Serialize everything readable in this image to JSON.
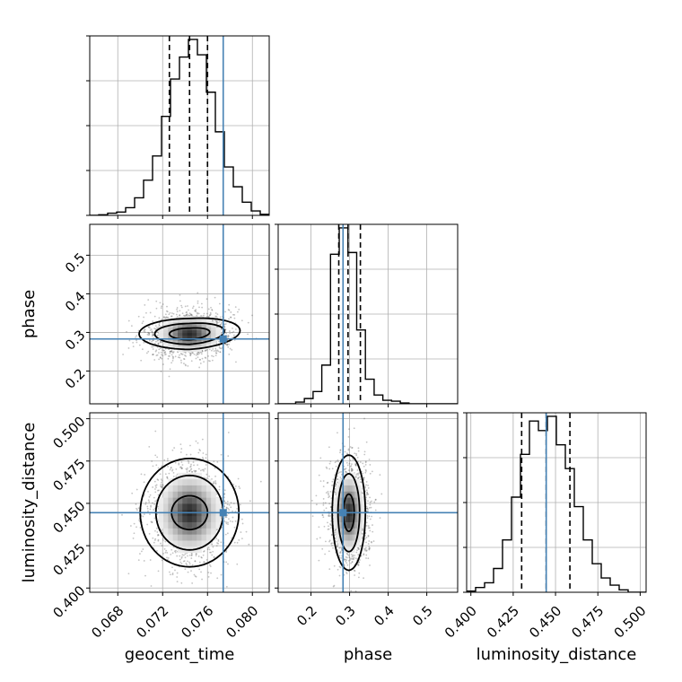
{
  "chart_data": {
    "type": "corner",
    "params": [
      {
        "name": "geocent_time",
        "xlabel": "geocent_time",
        "range": [
          0.0655,
          0.0815
        ],
        "ticks": [
          0.068,
          0.072,
          0.076,
          0.08
        ],
        "tick_labels": [
          "0.068",
          "0.072",
          "0.076",
          "0.080"
        ],
        "truth": 0.0774,
        "quantiles": [
          0.0726,
          0.0744,
          0.076
        ],
        "hist": {
          "edges": [
            0.0655,
            0.0663,
            0.0671,
            0.0679,
            0.0687,
            0.0695,
            0.0703,
            0.0711,
            0.0719,
            0.0727,
            0.0735,
            0.0743,
            0.0751,
            0.0759,
            0.0767,
            0.0775,
            0.0783,
            0.0791,
            0.0799,
            0.0807,
            0.0815
          ],
          "counts": [
            0,
            0.3,
            1.0,
            1.5,
            3.5,
            8.0,
            16.0,
            27.0,
            45.0,
            62.0,
            72.0,
            80.0,
            73.0,
            56.0,
            38.0,
            22.0,
            13.0,
            6.0,
            2.0,
            0.5
          ]
        }
      },
      {
        "name": "phase",
        "xlabel": "phase",
        "ylabel": "phase",
        "range": [
          0.115,
          0.58
        ],
        "ticks": [
          0.2,
          0.3,
          0.4,
          0.5
        ],
        "tick_labels": [
          "0.2",
          "0.3",
          "0.4",
          "0.5"
        ],
        "truth": 0.283,
        "quantiles": [
          0.272,
          0.296,
          0.328
        ],
        "hist": {
          "edges": [
            0.115,
            0.1376,
            0.1602,
            0.1828,
            0.2054,
            0.228,
            0.2506,
            0.2732,
            0.2958,
            0.3184,
            0.341,
            0.3636,
            0.3862,
            0.4088,
            0.4314,
            0.454,
            0.4766,
            0.4992,
            0.5218,
            0.5444,
            0.58
          ],
          "counts": [
            0,
            0,
            1.0,
            3.0,
            7.0,
            22.0,
            85.0,
            100.0,
            86.0,
            42.0,
            14.0,
            5.0,
            2.0,
            1.5,
            0.5,
            0,
            0,
            0,
            0,
            0
          ]
        }
      },
      {
        "name": "luminosity_distance",
        "xlabel": "luminosity_distance",
        "ylabel": "luminosity_distance",
        "range": [
          0.3975,
          0.5035
        ],
        "ticks": [
          0.4,
          0.425,
          0.45,
          0.475,
          0.5
        ],
        "tick_labels": [
          "0.400",
          "0.425",
          "0.450",
          "0.475",
          "0.500"
        ],
        "truth": 0.4445,
        "quantiles": [
          0.43,
          0.4445,
          0.4585
        ],
        "hist": {
          "edges": [
            0.3975,
            0.4028,
            0.4081,
            0.4134,
            0.4187,
            0.424,
            0.4293,
            0.4346,
            0.4399,
            0.4452,
            0.4505,
            0.4558,
            0.4611,
            0.4664,
            0.4717,
            0.477,
            0.4823,
            0.4876,
            0.4929,
            0.4982,
            0.5035
          ],
          "counts": [
            0.5,
            2.0,
            4.0,
            10.0,
            22.0,
            40.0,
            58.0,
            72.0,
            68.0,
            74.0,
            62.0,
            52.0,
            36.0,
            22.0,
            12.0,
            6.0,
            3.0,
            1.0,
            0,
            0
          ]
        }
      }
    ],
    "pairs": [
      {
        "x": "geocent_time",
        "y": "phase",
        "center": [
          0.0744,
          0.296
        ],
        "sigma": [
          0.0017,
          0.028
        ],
        "contours": [
          {
            "level": 0.5,
            "rx": 0.0018,
            "ry": 0.015,
            "skew": 0.012
          },
          {
            "level": 1.0,
            "rx": 0.0031,
            "ry": 0.027,
            "skew": 0.018
          },
          {
            "level": 1.5,
            "rx": 0.0045,
            "ry": 0.04,
            "skew": 0.022
          }
        ]
      },
      {
        "x": "geocent_time",
        "y": "luminosity_distance",
        "center": [
          0.0744,
          0.4445
        ],
        "sigma": [
          0.0017,
          0.0145
        ],
        "contours": [
          {
            "level": 0.5,
            "rx": 0.0016,
            "ry": 0.01,
            "skew": 0
          },
          {
            "level": 1.0,
            "rx": 0.003,
            "ry": 0.022,
            "skew": 0
          },
          {
            "level": 1.5,
            "rx": 0.0044,
            "ry": 0.032,
            "skew": 0
          }
        ]
      },
      {
        "x": "phase",
        "y": "luminosity_distance",
        "center": [
          0.298,
          0.4445
        ],
        "sigma": [
          0.024,
          0.0145
        ],
        "contours": [
          {
            "level": 0.5,
            "rx": 0.014,
            "ry": 0.011,
            "skew": 0
          },
          {
            "level": 1.0,
            "rx": 0.028,
            "ry": 0.023,
            "skew": 0
          },
          {
            "level": 1.5,
            "rx": 0.043,
            "ry": 0.034,
            "skew": 0
          }
        ]
      }
    ],
    "colors": {
      "truth": "#4682b4",
      "hist": "#000000",
      "quantile": "#000000",
      "grid": "#b0b0b0",
      "points": "#555555"
    },
    "grid": true,
    "histogram_y_tick_labels_shown": false
  }
}
